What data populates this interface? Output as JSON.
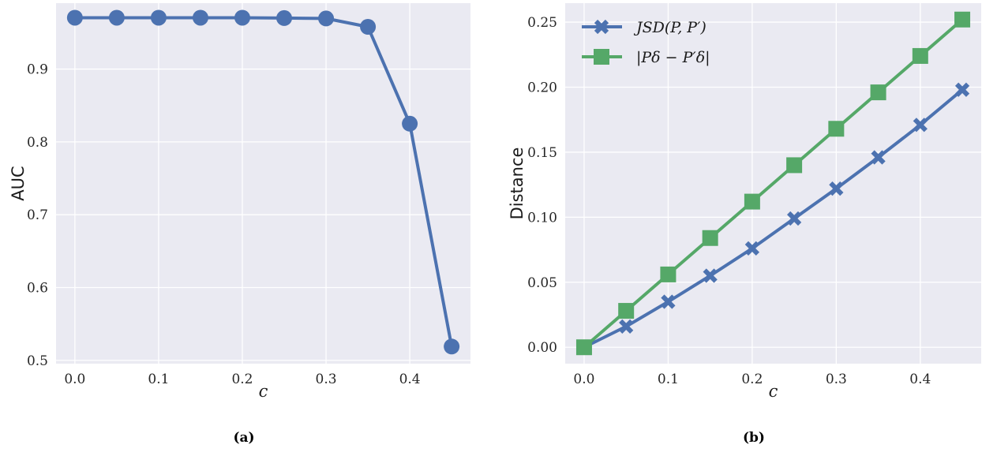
{
  "colors": {
    "plot_bg": "#eaeaf2",
    "grid": "#ffffff",
    "blue": "#4c72b0",
    "green": "#55a868"
  },
  "chart_data": [
    {
      "type": "line",
      "panel": "a",
      "caption": "(a)",
      "xlabel": "c",
      "ylabel": "AUC",
      "xlim": [
        -0.0225,
        0.4725
      ],
      "ylim": [
        0.4955,
        0.9905
      ],
      "xticks": [
        "0.0",
        "0.1",
        "0.2",
        "0.3",
        "0.4"
      ],
      "yticks": [
        "0.5",
        "0.6",
        "0.7",
        "0.8",
        "0.9"
      ],
      "grid": true,
      "series": [
        {
          "color": "#4c72b0",
          "marker": "circle",
          "x": [
            0.0,
            0.05,
            0.1,
            0.15,
            0.2,
            0.25,
            0.3,
            0.35,
            0.4,
            0.45
          ],
          "y": [
            0.9705,
            0.9705,
            0.9705,
            0.9705,
            0.9705,
            0.97,
            0.9695,
            0.958,
            0.825,
            0.519
          ]
        }
      ]
    },
    {
      "type": "line",
      "panel": "b",
      "caption": "(b)",
      "xlabel": "c",
      "ylabel": "Distance",
      "xlim": [
        -0.0225,
        0.4725
      ],
      "ylim": [
        -0.0126,
        0.2646
      ],
      "xticks": [
        "0.0",
        "0.1",
        "0.2",
        "0.3",
        "0.4"
      ],
      "yticks": [
        "0.00",
        "0.05",
        "0.10",
        "0.15",
        "0.20",
        "0.25"
      ],
      "grid": true,
      "legend": "top-left",
      "series": [
        {
          "name": "JSD(P, P′)",
          "color": "#4c72b0",
          "marker": "x",
          "x": [
            0.0,
            0.05,
            0.1,
            0.15,
            0.2,
            0.25,
            0.3,
            0.35,
            0.4,
            0.45
          ],
          "y": [
            0.0,
            0.016,
            0.035,
            0.055,
            0.076,
            0.099,
            0.122,
            0.146,
            0.171,
            0.198
          ]
        },
        {
          "name": "|Pδ − P′δ|",
          "color": "#55a868",
          "marker": "square",
          "x": [
            0.0,
            0.05,
            0.1,
            0.15,
            0.2,
            0.25,
            0.3,
            0.35,
            0.4,
            0.45
          ],
          "y": [
            0.0,
            0.028,
            0.056,
            0.084,
            0.112,
            0.14,
            0.168,
            0.196,
            0.224,
            0.252
          ]
        }
      ]
    }
  ]
}
